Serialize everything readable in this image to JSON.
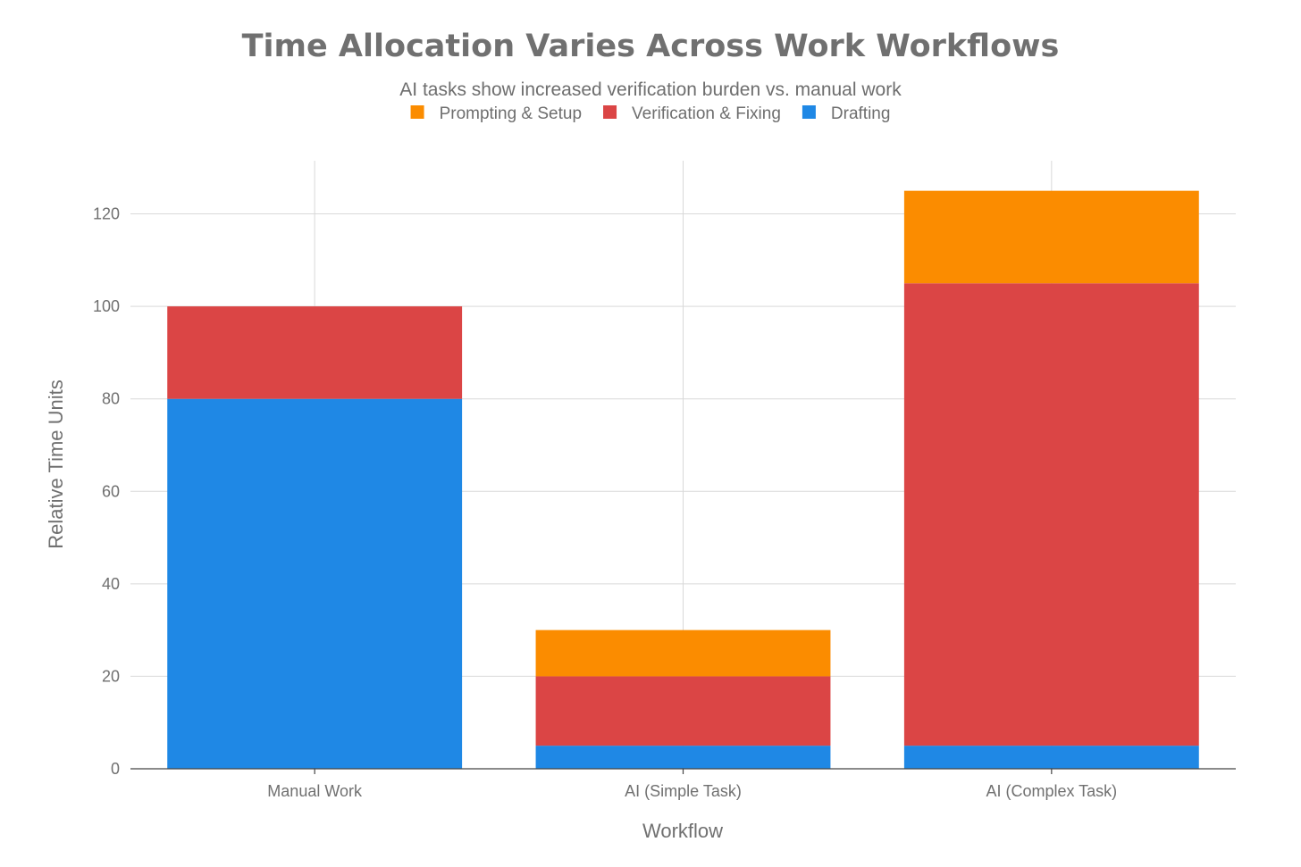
{
  "chart_data": {
    "type": "bar",
    "stacked": true,
    "title": "Time Allocation Varies Across Work Workflows",
    "subtitle": "AI tasks show increased verification burden vs. manual work",
    "xlabel": "Workflow",
    "ylabel": "Relative Time Units",
    "categories": [
      "Manual Work",
      "AI (Simple Task)",
      "AI (Complex Task)"
    ],
    "series": [
      {
        "name": "Drafting",
        "color": "#1f88e5",
        "values": [
          80,
          5,
          5
        ]
      },
      {
        "name": "Verification & Fixing",
        "color": "#db4545",
        "values": [
          20,
          15,
          100
        ]
      },
      {
        "name": "Prompting & Setup",
        "color": "#fb8c00",
        "values": [
          0,
          10,
          20
        ]
      }
    ],
    "legend_order": [
      "Prompting & Setup",
      "Verification & Fixing",
      "Drafting"
    ],
    "legend_placement": "top-center",
    "ylim": [
      0,
      131.5
    ],
    "yticks": [
      0,
      20,
      40,
      60,
      80,
      100,
      120
    ],
    "grid": true
  }
}
